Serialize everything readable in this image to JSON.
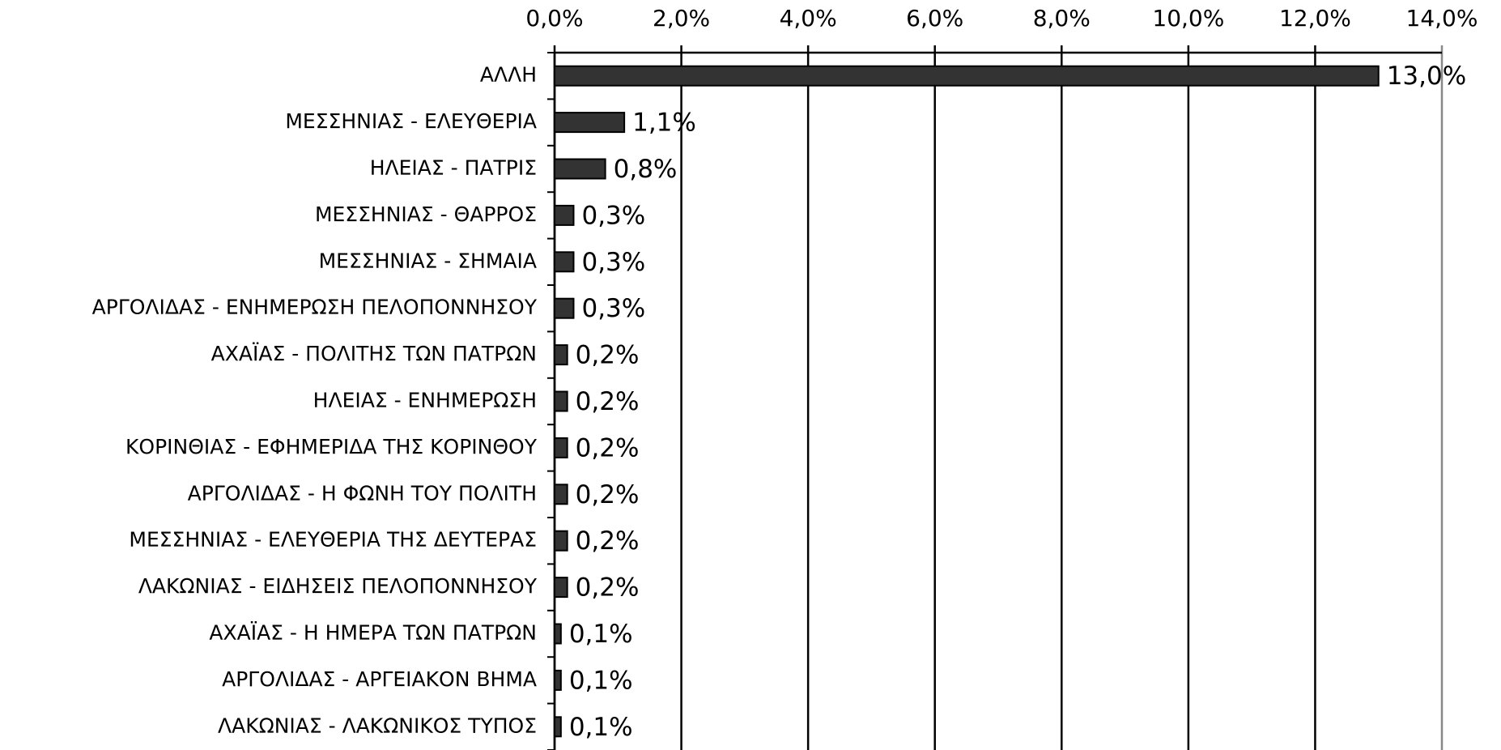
{
  "chart_data": {
    "type": "bar",
    "orientation": "horizontal",
    "categories": [
      "ΑΛΛΗ",
      "ΜΕΣΣΗΝΙΑΣ - ΕΛΕΥΘΕΡΙΑ",
      "ΗΛΕΙΑΣ - ΠΑΤΡΙΣ",
      "ΜΕΣΣΗΝΙΑΣ - ΘΑΡΡΟΣ",
      "ΜΕΣΣΗΝΙΑΣ - ΣΗΜΑΙΑ",
      "ΑΡΓΟΛΙΔΑΣ - ΕΝΗΜΕΡΩΣΗ ΠΕΛΟΠΟΝΝΗΣΟΥ",
      "ΑΧΑΪΑΣ - ΠΟΛΙΤΗΣ ΤΩΝ ΠΑΤΡΩΝ",
      "ΗΛΕΙΑΣ - ΕΝΗΜΕΡΩΣΗ",
      "ΚΟΡΙΝΘΙΑΣ - ΕΦΗΜΕΡΙΔΑ ΤΗΣ ΚΟΡΙΝΘΟΥ",
      "ΑΡΓΟΛΙΔΑΣ - Η ΦΩΝΗ ΤΟΥ ΠΟΛΙΤΗ",
      "ΜΕΣΣΗΝΙΑΣ - ΕΛΕΥΘΕΡΙΑ ΤΗΣ ΔΕΥΤΕΡΑΣ",
      "ΛΑΚΩΝΙΑΣ - ΕΙΔΗΣΕΙΣ ΠΕΛΟΠΟΝΝΗΣΟΥ",
      "ΑΧΑΪΑΣ - Η ΗΜΕΡΑ ΤΩΝ ΠΑΤΡΩΝ",
      "ΑΡΓΟΛΙΔΑΣ - ΑΡΓΕΙΑΚΟΝ ΒΗΜΑ",
      "ΛΑΚΩΝΙΑΣ - ΛΑΚΩΝΙΚΟΣ ΤΥΠΟΣ"
    ],
    "values": [
      13.0,
      1.1,
      0.8,
      0.3,
      0.3,
      0.3,
      0.2,
      0.2,
      0.2,
      0.2,
      0.2,
      0.2,
      0.1,
      0.1,
      0.1
    ],
    "value_labels": [
      "13,0%",
      "1,1%",
      "0,8%",
      "0,3%",
      "0,3%",
      "0,3%",
      "0,2%",
      "0,2%",
      "0,2%",
      "0,2%",
      "0,2%",
      "0,2%",
      "0,1%",
      "0,1%",
      "0,1%"
    ],
    "color": "#333333",
    "xlim": [
      0,
      14
    ],
    "xticks": [
      {
        "value": 0,
        "label": "0,0%"
      },
      {
        "value": 2,
        "label": "2,0%"
      },
      {
        "value": 4,
        "label": "4,0%"
      },
      {
        "value": 6,
        "label": "6,0%"
      },
      {
        "value": 8,
        "label": "8,0%"
      },
      {
        "value": 10,
        "label": "10,0%"
      },
      {
        "value": 12,
        "label": "12,0%"
      },
      {
        "value": 14,
        "label": "14,0%"
      }
    ],
    "grid": true
  }
}
